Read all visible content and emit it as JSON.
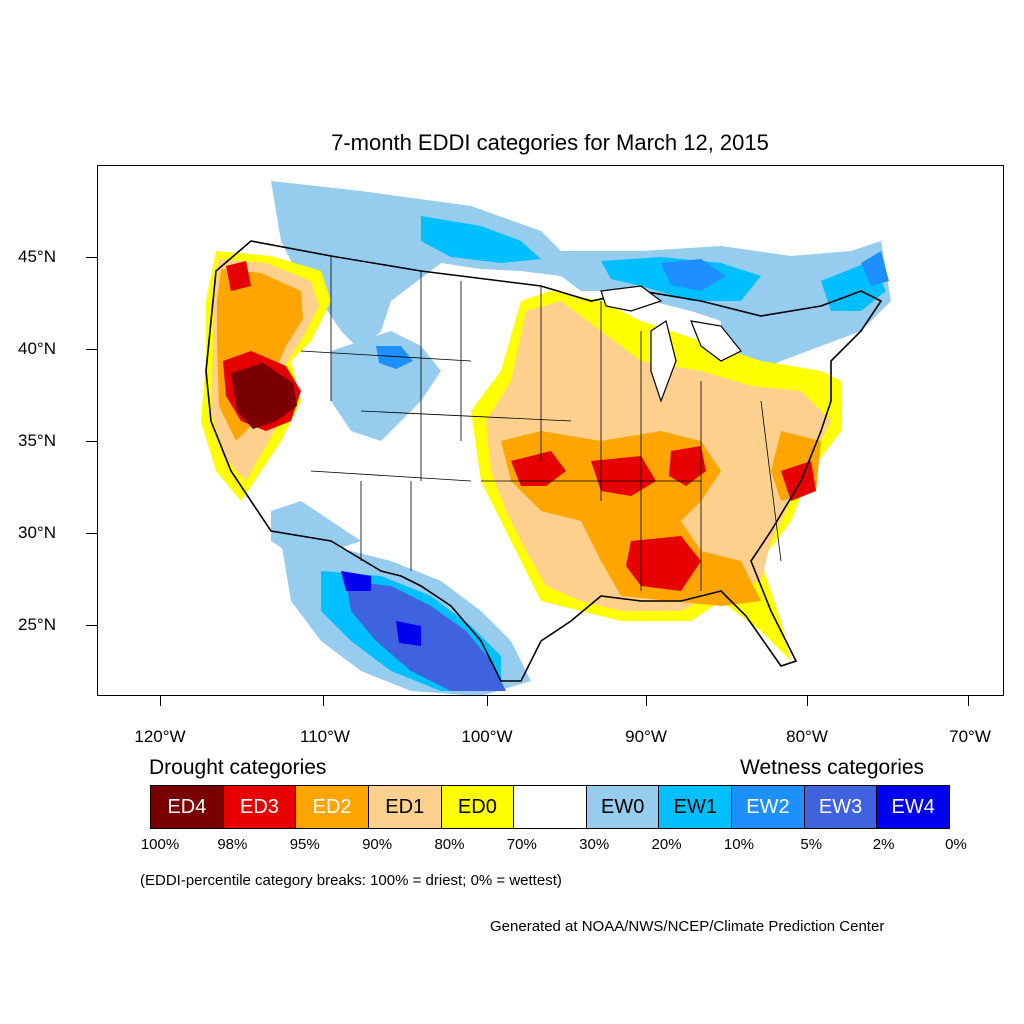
{
  "title": "7-month EDDI categories for March 12, 2015",
  "y_axis_labels": [
    "45°N",
    "40°N",
    "35°N",
    "30°N",
    "25°N"
  ],
  "x_axis_labels": [
    "120°W",
    "110°W",
    "100°W",
    "90°W",
    "80°W",
    "70°W"
  ],
  "legend": {
    "drought_heading": "Drought categories",
    "wetness_heading": "Wetness categories",
    "categories": [
      {
        "label": "ED4",
        "color": "#7a0000",
        "text_color": "#ffffff"
      },
      {
        "label": "ED3",
        "color": "#e60000",
        "text_color": "#ffffff"
      },
      {
        "label": "ED2",
        "color": "#ffa500",
        "text_color": "#ffffff"
      },
      {
        "label": "ED1",
        "color": "#fdd08d",
        "text_color": "#000000"
      },
      {
        "label": "ED0",
        "color": "#ffff00",
        "text_color": "#000000"
      },
      {
        "label": "",
        "color": "#ffffff",
        "text_color": "#000000"
      },
      {
        "label": "EW0",
        "color": "#96ccee",
        "text_color": "#000000"
      },
      {
        "label": "EW1",
        "color": "#00bfff",
        "text_color": "#000000"
      },
      {
        "label": "EW2",
        "color": "#1e8fff",
        "text_color": "#ffffff"
      },
      {
        "label": "EW3",
        "color": "#3f63de",
        "text_color": "#ffffff"
      },
      {
        "label": "EW4",
        "color": "#0000f0",
        "text_color": "#ffffff"
      }
    ],
    "percent_breaks": [
      "100%",
      "98%",
      "95%",
      "90%",
      "80%",
      "70%",
      "30%",
      "20%",
      "10%",
      "5%",
      "2%",
      "0%"
    ]
  },
  "note": "(EDDI-percentile category breaks: 100% = driest; 0% = wettest)",
  "credit": "Generated at NOAA/NWS/NCEP/Climate Prediction Center"
}
